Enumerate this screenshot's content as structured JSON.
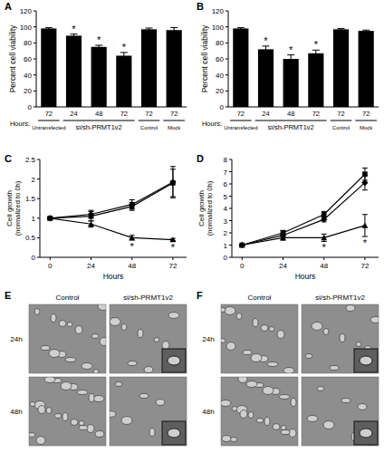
{
  "chart_data": [
    {
      "type": "bar",
      "label": "A",
      "y_label": "Percent cell viability",
      "x_label": "Hours:",
      "categories": [
        "72",
        "24",
        "48",
        "72",
        "72",
        "72"
      ],
      "group_labels": [
        "Untransfected",
        "si/sh-PRMT1v2",
        "si/sh-PRMT1v2",
        "si/sh-PRMT1v2",
        "Control",
        "Mock"
      ],
      "values": [
        98,
        89,
        75,
        64,
        97,
        96
      ],
      "errors": [
        1,
        2,
        2,
        4,
        1.5,
        3
      ],
      "significance": [
        null,
        "*",
        "*",
        "*",
        null,
        null
      ],
      "color": "#000000",
      "ylim": [
        0,
        120
      ],
      "yticks": [
        0,
        20,
        40,
        60,
        80,
        100,
        120
      ]
    },
    {
      "type": "bar",
      "label": "B",
      "y_label": "Percent cell viability",
      "x_label": "Hours:",
      "categories": [
        "72",
        "24",
        "48",
        "72",
        "72",
        "72"
      ],
      "group_labels": [
        "Untransfected",
        "si/sh-PRMT1v2",
        "si/sh-PRMT1v2",
        "si/sh-PRMT1v2",
        "Control",
        "Mock"
      ],
      "values": [
        98,
        72,
        60,
        67,
        97,
        95
      ],
      "errors": [
        1,
        4,
        5,
        4,
        1,
        1
      ],
      "significance": [
        null,
        "*",
        "*",
        "*",
        null,
        null
      ],
      "color": "#000000",
      "ylim": [
        0,
        120
      ],
      "yticks": [
        0,
        20,
        40,
        60,
        80,
        100,
        120
      ]
    },
    {
      "type": "line",
      "label": "C",
      "x_label": "Hours",
      "y_label": [
        "Cell growth",
        "(normalized to 0h)"
      ],
      "x": [
        0,
        24,
        48,
        72
      ],
      "xlim": [
        -6,
        80
      ],
      "xticks": [
        0,
        24,
        48,
        72
      ],
      "ylim": [
        0,
        2.5
      ],
      "yticks": [
        0,
        0.5,
        1,
        1.5,
        2,
        2.5
      ],
      "series": [
        {
          "color": "#000000",
          "marker": "square",
          "values": [
            1,
            1.05,
            1.3,
            1.9
          ],
          "errors": [
            0.02,
            0.12,
            0.1,
            0.35
          ]
        },
        {
          "color": "#000000",
          "marker": "diamond",
          "values": [
            1,
            1.1,
            1.35,
            1.92
          ],
          "errors": [
            0.02,
            0.1,
            0.12,
            0.4
          ]
        },
        {
          "color": "#000000",
          "marker": "triangle",
          "values": [
            1,
            0.85,
            0.5,
            0.45
          ],
          "errors": [
            0.02,
            0.08,
            0.06,
            0.03
          ],
          "significance": [
            null,
            null,
            "*",
            "*"
          ]
        }
      ]
    },
    {
      "type": "line",
      "label": "D",
      "x_label": "Hours",
      "y_label": [
        "Cell growth",
        "(normalized to 0h)"
      ],
      "x": [
        0,
        24,
        48,
        72
      ],
      "xlim": [
        -6,
        80
      ],
      "xticks": [
        0,
        24,
        48,
        72
      ],
      "ylim": [
        0,
        8
      ],
      "yticks": [
        0,
        1,
        2,
        3,
        4,
        5,
        6,
        7,
        8
      ],
      "series": [
        {
          "color": "#000000",
          "marker": "square",
          "values": [
            1,
            2.0,
            3.5,
            6.8
          ],
          "errors": [
            0.05,
            0.2,
            0.25,
            0.5
          ]
        },
        {
          "color": "#000000",
          "marker": "diamond",
          "values": [
            1,
            1.8,
            3.1,
            6.1
          ],
          "errors": [
            0.05,
            0.15,
            0.2,
            0.6
          ]
        },
        {
          "color": "#000000",
          "marker": "triangle",
          "values": [
            1,
            1.6,
            1.6,
            2.6
          ],
          "errors": [
            0.05,
            0.2,
            0.3,
            0.9
          ],
          "significance": [
            null,
            null,
            "*",
            "*"
          ]
        }
      ]
    },
    {
      "type": "image",
      "label": "E",
      "columns": [
        "Control",
        "si/sh-PRMT1v2"
      ],
      "rows": [
        "24h",
        "48h"
      ]
    },
    {
      "type": "image",
      "label": "F",
      "columns": [
        "Control",
        "si/sh-PRMT1v2"
      ],
      "rows": [
        "24h",
        "48h"
      ]
    }
  ]
}
